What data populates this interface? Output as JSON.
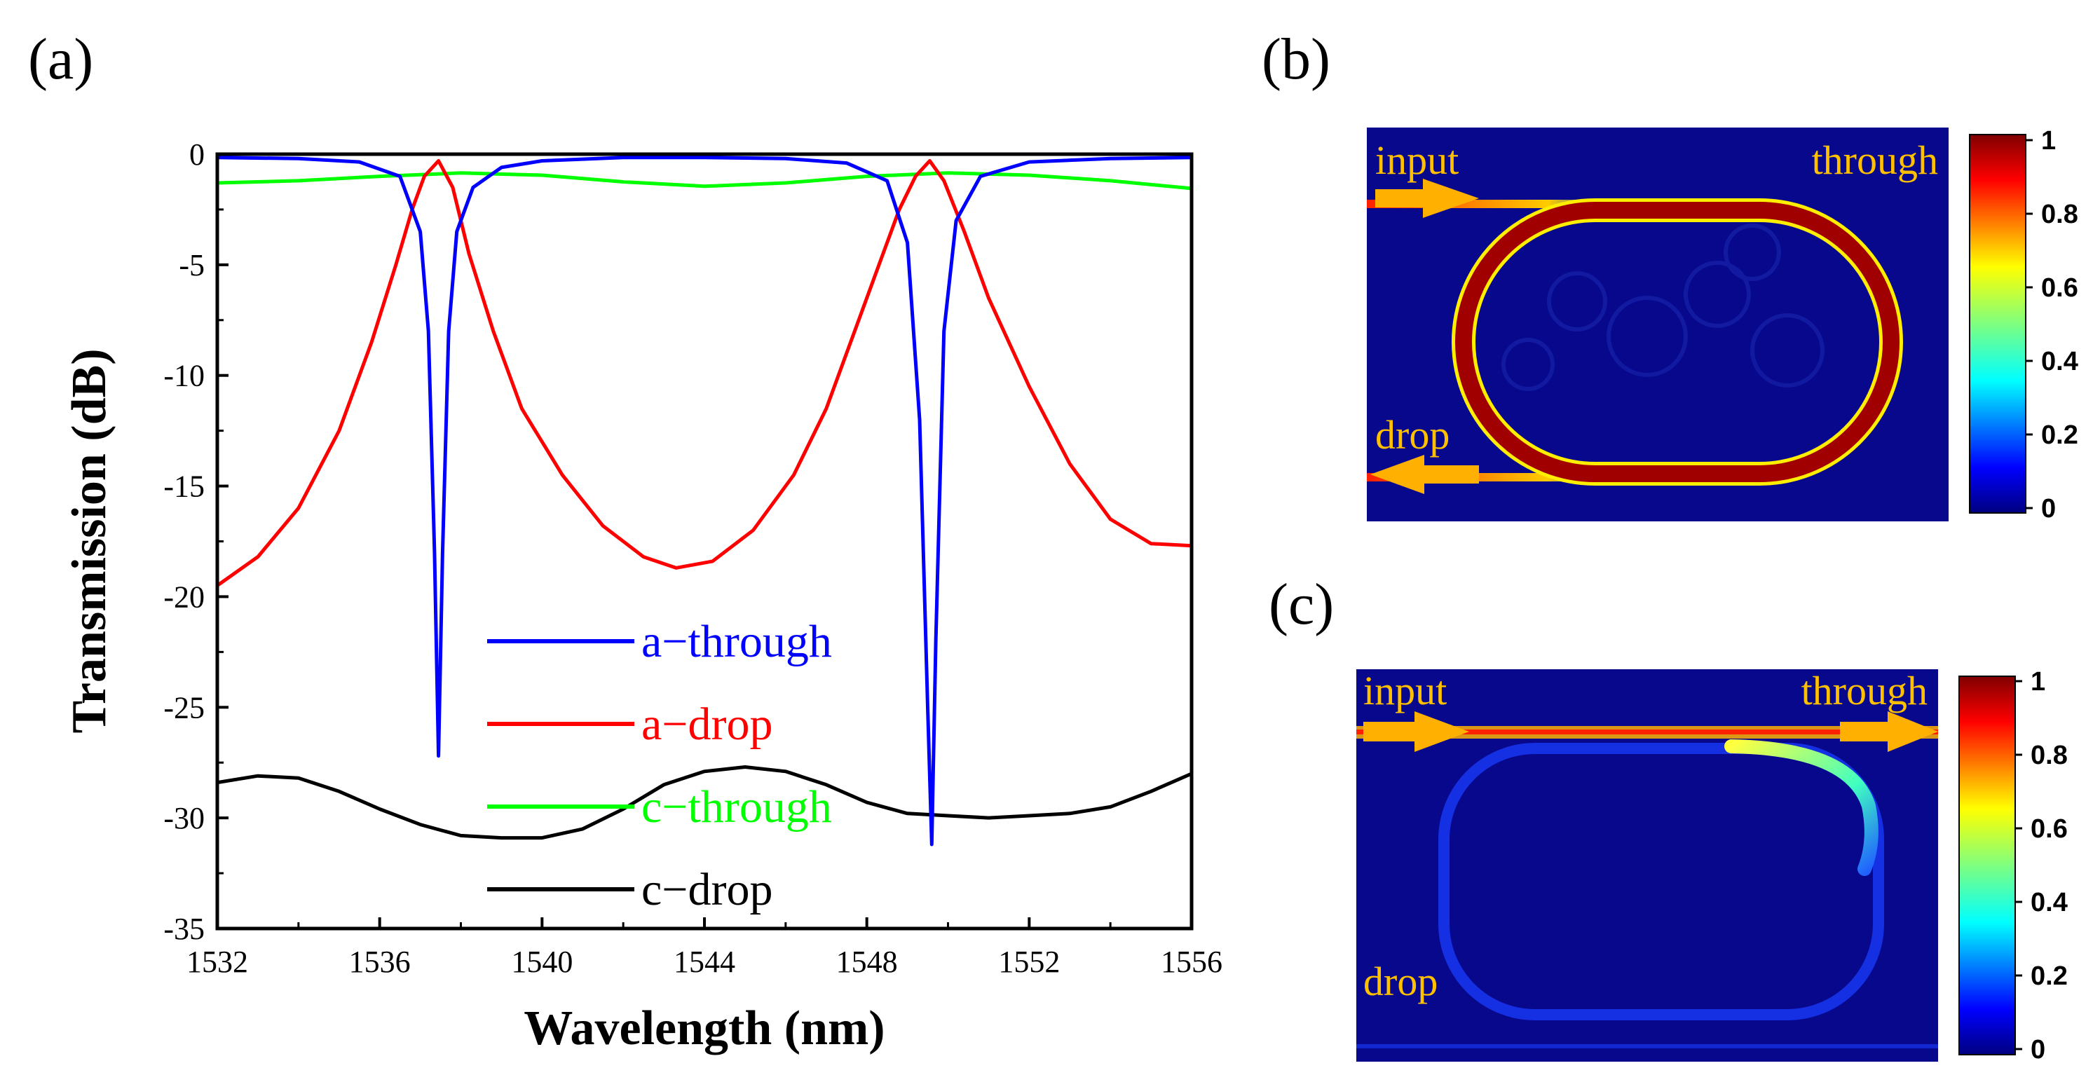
{
  "panels": {
    "a_label": "(a)",
    "b_label": "(b)",
    "c_label": "(c)"
  },
  "chart_data": {
    "type": "line",
    "title": "",
    "xlabel": "Wavelength (nm)",
    "ylabel": "Transmission (dB)",
    "xlim": [
      1532,
      1556
    ],
    "ylim": [
      -35,
      0
    ],
    "xticks": [
      1532,
      1536,
      1540,
      1544,
      1548,
      1552,
      1556
    ],
    "yticks": [
      0,
      -5,
      -10,
      -15,
      -20,
      -25,
      -30,
      -35
    ],
    "legend_position": "center",
    "series": [
      {
        "name": "a−through",
        "color": "#0000ff",
        "x": [
          1532,
          1534,
          1535.5,
          1536.5,
          1537.0,
          1537.2,
          1537.35,
          1537.45,
          1537.55,
          1537.7,
          1537.9,
          1538.3,
          1539,
          1540,
          1542,
          1544,
          1546,
          1547.5,
          1548.5,
          1549.0,
          1549.3,
          1549.5,
          1549.6,
          1549.7,
          1549.9,
          1550.2,
          1550.8,
          1552,
          1554,
          1556
        ],
        "y": [
          -0.15,
          -0.2,
          -0.35,
          -1.0,
          -3.5,
          -8.0,
          -18.0,
          -27.2,
          -18.0,
          -8.0,
          -3.5,
          -1.5,
          -0.6,
          -0.3,
          -0.15,
          -0.15,
          -0.2,
          -0.4,
          -1.2,
          -4.0,
          -12.0,
          -25.0,
          -31.2,
          -22.0,
          -8.0,
          -3.0,
          -1.0,
          -0.35,
          -0.2,
          -0.15
        ]
      },
      {
        "name": "a−drop",
        "color": "#ff0000",
        "x": [
          1532,
          1533,
          1534,
          1535,
          1535.8,
          1536.4,
          1536.8,
          1537.1,
          1537.45,
          1537.8,
          1538.2,
          1538.8,
          1539.5,
          1540.5,
          1541.5,
          1542.5,
          1543.3,
          1544.2,
          1545.2,
          1546.2,
          1547.0,
          1547.7,
          1548.3,
          1548.8,
          1549.2,
          1549.55,
          1549.9,
          1550.4,
          1551,
          1552,
          1553,
          1554,
          1555,
          1556
        ],
        "y": [
          -19.5,
          -18.2,
          -16.0,
          -12.5,
          -8.5,
          -5.0,
          -2.5,
          -1.0,
          -0.3,
          -1.5,
          -4.5,
          -8.0,
          -11.5,
          -14.5,
          -16.8,
          -18.2,
          -18.7,
          -18.4,
          -17.0,
          -14.5,
          -11.5,
          -8.0,
          -5.0,
          -2.5,
          -1.0,
          -0.3,
          -1.2,
          -3.5,
          -6.5,
          -10.5,
          -14.0,
          -16.5,
          -17.6,
          -17.7
        ]
      },
      {
        "name": "c−through",
        "color": "#00ff00",
        "x": [
          1532,
          1534,
          1536,
          1538,
          1540,
          1542,
          1544,
          1546,
          1548,
          1550,
          1552,
          1554,
          1556
        ],
        "y": [
          -1.3,
          -1.2,
          -1.0,
          -0.85,
          -0.95,
          -1.25,
          -1.45,
          -1.3,
          -1.0,
          -0.85,
          -0.95,
          -1.2,
          -1.55
        ]
      },
      {
        "name": "c−drop",
        "color": "#000000",
        "x": [
          1532,
          1533,
          1534,
          1535,
          1536,
          1537,
          1538,
          1539,
          1540,
          1541,
          1542,
          1543,
          1544,
          1545,
          1546,
          1547,
          1548,
          1549,
          1550,
          1551,
          1552,
          1553,
          1554,
          1555,
          1556
        ],
        "y": [
          -28.4,
          -28.1,
          -28.2,
          -28.8,
          -29.6,
          -30.3,
          -30.8,
          -30.9,
          -30.9,
          -30.5,
          -29.6,
          -28.5,
          -27.9,
          -27.7,
          -27.9,
          -28.5,
          -29.3,
          -29.8,
          -29.9,
          -30.0,
          -29.9,
          -29.8,
          -29.5,
          -28.8,
          -28.0
        ]
      }
    ]
  },
  "field_maps": [
    {
      "id": "b",
      "port_labels": {
        "input": "input",
        "through": "through",
        "drop": "drop"
      },
      "colorbar_ticks": [
        "1",
        "0.8",
        "0.6",
        "0.4",
        "0.2",
        "0"
      ],
      "ring_intensity": 1.0
    },
    {
      "id": "c",
      "port_labels": {
        "input": "input",
        "through": "through",
        "drop": "drop"
      },
      "colorbar_ticks": [
        "1",
        "0.8",
        "0.6",
        "0.4",
        "0.2",
        "0"
      ],
      "ring_intensity": 0.15
    }
  ],
  "colors": {
    "background_map": "#08088c",
    "label_color": "#ffc000",
    "ring_hot": "#a00000",
    "arrow": "#ffb000"
  }
}
